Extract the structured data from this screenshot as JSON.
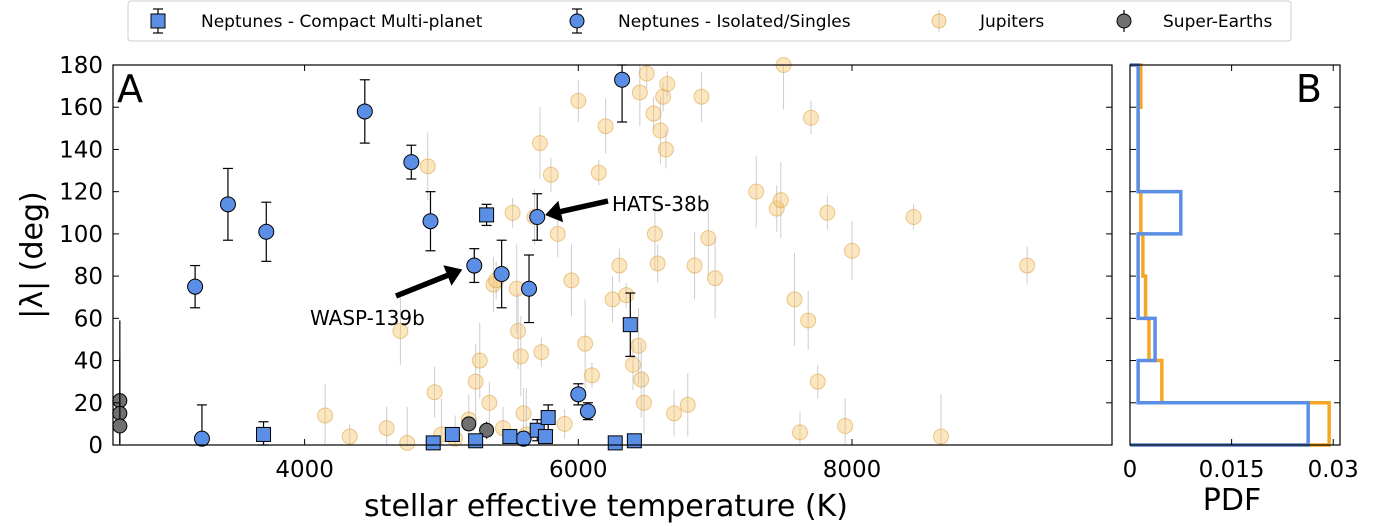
{
  "chart_data": [
    {
      "panel": "A",
      "type": "scatter",
      "xlabel": "stellar effective temperature (K)",
      "ylabel": "|λ| (deg)",
      "xlim": [
        2600,
        9900
      ],
      "ylim": [
        0,
        180
      ],
      "xticks": [
        4000,
        6000,
        8000
      ],
      "yticks": [
        0,
        20,
        40,
        60,
        80,
        100,
        120,
        140,
        160,
        180
      ],
      "grid": false,
      "legend": {
        "placement": "top",
        "entries": [
          {
            "label": "Neptunes - Compact Multi-planet",
            "marker": "square",
            "color": "#5b8fe6"
          },
          {
            "label": "Neptunes - Isolated/Singles",
            "marker": "circle",
            "color": "#5b8fe6"
          },
          {
            "label": "Jupiters",
            "marker": "circle",
            "color": "#f7c46a"
          },
          {
            "label": "Super-Earths",
            "marker": "circle",
            "color": "#707070"
          }
        ]
      },
      "annotations": [
        {
          "text": "WASP-139b",
          "x": 5240,
          "y": 85
        },
        {
          "text": "HATS-38b",
          "x": 5670,
          "y": 108
        }
      ],
      "series": [
        {
          "name": "Neptunes - Compact Multi-planet",
          "marker": "square",
          "color": "#5b8fe6",
          "points": [
            {
              "x": 3700,
              "y": 5,
              "err": 6
            },
            {
              "x": 4940,
              "y": 1,
              "err": 2
            },
            {
              "x": 5080,
              "y": 5,
              "err": 3
            },
            {
              "x": 5250,
              "y": 2,
              "err": 2
            },
            {
              "x": 5330,
              "y": 109,
              "err": 5
            },
            {
              "x": 5500,
              "y": 4,
              "err": 3
            },
            {
              "x": 5700,
              "y": 7,
              "err": 5
            },
            {
              "x": 5780,
              "y": 13,
              "err": 6
            },
            {
              "x": 5760,
              "y": 4,
              "err": 3
            },
            {
              "x": 6270,
              "y": 1,
              "err": 2
            },
            {
              "x": 6380,
              "y": 57,
              "err": 15
            },
            {
              "x": 6410,
              "y": 2,
              "err": 2
            }
          ]
        },
        {
          "name": "Neptunes - Isolated/Singles",
          "marker": "circle",
          "color": "#5b8fe6",
          "points": [
            {
              "x": 3200,
              "y": 75,
              "err": 10
            },
            {
              "x": 3250,
              "y": 3,
              "err": 16
            },
            {
              "x": 3440,
              "y": 114,
              "err": 17
            },
            {
              "x": 3720,
              "y": 101,
              "err": 14
            },
            {
              "x": 4440,
              "y": 158,
              "err": 15
            },
            {
              "x": 4780,
              "y": 134,
              "err": 8
            },
            {
              "x": 4920,
              "y": 106,
              "err": 14
            },
            {
              "x": 5240,
              "y": 85,
              "err": 8
            },
            {
              "x": 5440,
              "y": 81,
              "err": 16
            },
            {
              "x": 5600,
              "y": 3,
              "err": 3
            },
            {
              "x": 5640,
              "y": 74,
              "err": 16
            },
            {
              "x": 5700,
              "y": 108,
              "err": 11
            },
            {
              "x": 6000,
              "y": 24,
              "err": 5
            },
            {
              "x": 6070,
              "y": 16,
              "err": 4
            },
            {
              "x": 6320,
              "y": 173,
              "err": 20
            }
          ]
        },
        {
          "name": "Jupiters",
          "marker": "circle",
          "color": "#f7c46a",
          "points": [
            {
              "x": 4150,
              "y": 14
            },
            {
              "x": 4330,
              "y": 4
            },
            {
              "x": 4600,
              "y": 8
            },
            {
              "x": 4700,
              "y": 54
            },
            {
              "x": 4750,
              "y": 1
            },
            {
              "x": 4900,
              "y": 132
            },
            {
              "x": 4950,
              "y": 25
            },
            {
              "x": 5000,
              "y": 5
            },
            {
              "x": 5100,
              "y": 3
            },
            {
              "x": 5200,
              "y": 12
            },
            {
              "x": 5250,
              "y": 30
            },
            {
              "x": 5280,
              "y": 40
            },
            {
              "x": 5350,
              "y": 20
            },
            {
              "x": 5380,
              "y": 76
            },
            {
              "x": 5400,
              "y": 78
            },
            {
              "x": 5450,
              "y": 8
            },
            {
              "x": 5520,
              "y": 110
            },
            {
              "x": 5550,
              "y": 74
            },
            {
              "x": 5560,
              "y": 54
            },
            {
              "x": 5580,
              "y": 42
            },
            {
              "x": 5600,
              "y": 15
            },
            {
              "x": 5620,
              "y": 5
            },
            {
              "x": 5680,
              "y": 108
            },
            {
              "x": 5720,
              "y": 143
            },
            {
              "x": 5730,
              "y": 44
            },
            {
              "x": 5800,
              "y": 128
            },
            {
              "x": 5850,
              "y": 100
            },
            {
              "x": 5900,
              "y": 10
            },
            {
              "x": 5950,
              "y": 78
            },
            {
              "x": 6000,
              "y": 163
            },
            {
              "x": 6050,
              "y": 48
            },
            {
              "x": 6100,
              "y": 33
            },
            {
              "x": 6150,
              "y": 129
            },
            {
              "x": 6200,
              "y": 151
            },
            {
              "x": 6250,
              "y": 69
            },
            {
              "x": 6300,
              "y": 85
            },
            {
              "x": 6350,
              "y": 71
            },
            {
              "x": 6400,
              "y": 38
            },
            {
              "x": 6440,
              "y": 47
            },
            {
              "x": 6450,
              "y": 167
            },
            {
              "x": 6460,
              "y": 31
            },
            {
              "x": 6480,
              "y": 20
            },
            {
              "x": 6500,
              "y": 176
            },
            {
              "x": 6550,
              "y": 157
            },
            {
              "x": 6560,
              "y": 100
            },
            {
              "x": 6580,
              "y": 86
            },
            {
              "x": 6600,
              "y": 149
            },
            {
              "x": 6620,
              "y": 165
            },
            {
              "x": 6640,
              "y": 140
            },
            {
              "x": 6650,
              "y": 171
            },
            {
              "x": 6700,
              "y": 15
            },
            {
              "x": 6800,
              "y": 19
            },
            {
              "x": 6850,
              "y": 85
            },
            {
              "x": 6900,
              "y": 165
            },
            {
              "x": 6950,
              "y": 98
            },
            {
              "x": 7000,
              "y": 79
            },
            {
              "x": 7300,
              "y": 120
            },
            {
              "x": 7450,
              "y": 112
            },
            {
              "x": 7480,
              "y": 116
            },
            {
              "x": 7500,
              "y": 180
            },
            {
              "x": 7580,
              "y": 69
            },
            {
              "x": 7620,
              "y": 6
            },
            {
              "x": 7680,
              "y": 59
            },
            {
              "x": 7700,
              "y": 155
            },
            {
              "x": 7750,
              "y": 30
            },
            {
              "x": 7820,
              "y": 110
            },
            {
              "x": 7950,
              "y": 9
            },
            {
              "x": 8000,
              "y": 92
            },
            {
              "x": 8450,
              "y": 108
            },
            {
              "x": 8650,
              "y": 4
            },
            {
              "x": 9280,
              "y": 85
            }
          ]
        },
        {
          "name": "Super-Earths",
          "marker": "circle",
          "color": "#707070",
          "points": [
            {
              "x": 2650,
              "y": 21,
              "err": 20
            },
            {
              "x": 2650,
              "y": 15,
              "err": 10
            },
            {
              "x": 2650,
              "y": 9,
              "err": 50
            },
            {
              "x": 5200,
              "y": 10,
              "err": 3
            },
            {
              "x": 5330,
              "y": 7,
              "err": 4
            }
          ]
        }
      ]
    },
    {
      "panel": "B",
      "type": "histogram",
      "xlabel": "PDF",
      "xlim": [
        0,
        0.031
      ],
      "ylim": [
        0,
        180
      ],
      "xticks": [
        "0",
        "0.015",
        "0.03"
      ],
      "bins": [
        0,
        20,
        40,
        60,
        80,
        100,
        120,
        140,
        160,
        180
      ],
      "series": [
        {
          "color": "#f5a623",
          "values": [
            0.0294,
            0.0047,
            0.0028,
            0.0023,
            0.0019,
            0.0016,
            0.0012,
            0.0012,
            0.0016
          ]
        },
        {
          "color": "#5b8fe6",
          "values": [
            0.0263,
            0.0012,
            0.0037,
            0.0012,
            0.0012,
            0.0075,
            0.0012,
            0.0012,
            0.0012
          ]
        }
      ]
    }
  ]
}
